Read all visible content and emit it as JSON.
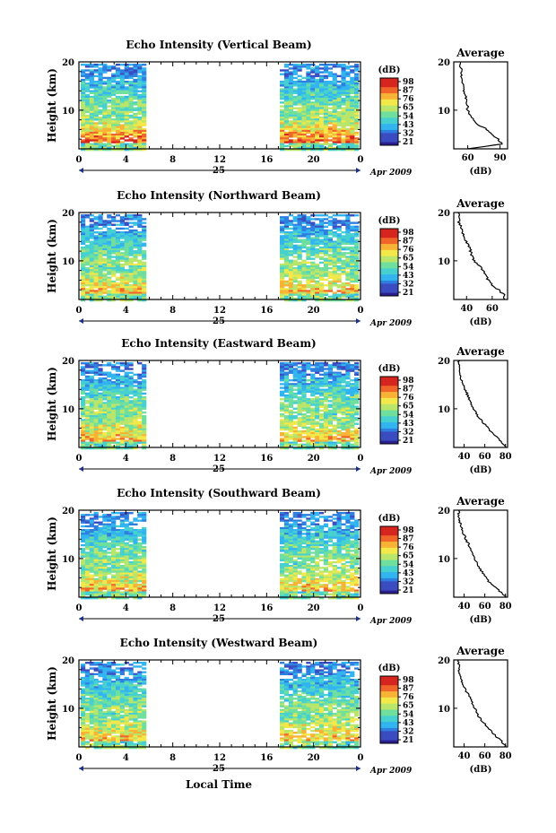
{
  "figure": {
    "xlabel": "Local Time",
    "ylabel": "Height (km)",
    "day_label": "25",
    "month_label": "Apr 2009",
    "avg_title": "Average",
    "avg_xlabel": "(dB)",
    "cb_unit": "(dB)",
    "cb_ticks": [
      "98",
      "87",
      "76",
      "65",
      "54",
      "43",
      "32",
      "21"
    ],
    "colormap": [
      "#2b1f8f",
      "#3b4cc0",
      "#2f7fe0",
      "#31b4f0",
      "#46d0d0",
      "#6fdf9e",
      "#b9e66a",
      "#f3e84a",
      "#f8b235",
      "#f0662a",
      "#d6251f"
    ]
  },
  "chart_data": [
    {
      "type": "heatmap",
      "title": "Echo Intensity (Vertical Beam)",
      "xlabel": "Local Time",
      "ylabel": "Height (km)",
      "xlim": [
        0,
        24
      ],
      "ylim": [
        2,
        20
      ],
      "x_ticks": [
        "0",
        "4",
        "8",
        "12",
        "16",
        "20",
        "0"
      ],
      "y_ticks": [
        "10",
        "20"
      ],
      "data_gap_hours": [
        5.8,
        17.2
      ],
      "colorbar": {
        "label": "(dB)",
        "ticks": [
          98,
          87,
          76,
          65,
          54,
          43,
          32,
          21
        ]
      },
      "average_profile": {
        "title": "Average",
        "xlabel": "(dB)",
        "xlim": [
          47,
          97
        ],
        "x_ticks": [
          "60",
          "90"
        ],
        "height_km": [
          2,
          3,
          4,
          5,
          6,
          7,
          8,
          10,
          12,
          14,
          16,
          18,
          20
        ],
        "db": [
          60,
          92,
          88,
          83,
          78,
          70,
          65,
          60,
          59,
          56,
          55,
          54,
          53
        ]
      }
    },
    {
      "type": "heatmap",
      "title": "Echo Intensity (Northward Beam)",
      "xlabel": "Local Time",
      "ylabel": "Height (km)",
      "xlim": [
        0,
        24
      ],
      "ylim": [
        2,
        20
      ],
      "x_ticks": [
        "0",
        "4",
        "8",
        "12",
        "16",
        "20",
        "0"
      ],
      "y_ticks": [
        "10",
        "20"
      ],
      "data_gap_hours": [
        5.8,
        17.2
      ],
      "colorbar": {
        "label": "(dB)",
        "ticks": [
          98,
          87,
          76,
          65,
          54,
          43,
          32,
          21
        ]
      },
      "average_profile": {
        "title": "Average",
        "xlabel": "(dB)",
        "xlim": [
          30,
          72
        ],
        "x_ticks": [
          "40",
          "60"
        ],
        "height_km": [
          2,
          3,
          4,
          5,
          6,
          8,
          10,
          12,
          14,
          16,
          18,
          20
        ],
        "db": [
          70,
          69,
          65,
          60,
          57,
          53,
          46,
          43,
          40,
          37,
          34,
          34
        ]
      }
    },
    {
      "type": "heatmap",
      "title": "Echo Intensity (Eastward Beam)",
      "xlabel": "Local Time",
      "ylabel": "Height (km)",
      "xlim": [
        0,
        24
      ],
      "ylim": [
        2,
        20
      ],
      "x_ticks": [
        "0",
        "4",
        "8",
        "12",
        "16",
        "20",
        "0"
      ],
      "y_ticks": [
        "10",
        "20"
      ],
      "data_gap_hours": [
        5.8,
        17.2
      ],
      "colorbar": {
        "label": "(dB)",
        "ticks": [
          98,
          87,
          76,
          65,
          54,
          43,
          32,
          21
        ]
      },
      "average_profile": {
        "title": "Average",
        "xlabel": "(dB)",
        "xlim": [
          30,
          82
        ],
        "x_ticks": [
          "40",
          "60",
          "80"
        ],
        "height_km": [
          2,
          3,
          4,
          5,
          6,
          8,
          10,
          12,
          14,
          16,
          18,
          20
        ],
        "db": [
          80,
          77,
          72,
          67,
          63,
          55,
          49,
          45,
          41,
          37,
          35,
          35
        ]
      }
    },
    {
      "type": "heatmap",
      "title": "Echo Intensity (Southward Beam)",
      "xlabel": "Local Time",
      "ylabel": "Height (km)",
      "xlim": [
        0,
        24
      ],
      "ylim": [
        2,
        20
      ],
      "x_ticks": [
        "0",
        "4",
        "8",
        "12",
        "16",
        "20",
        "0"
      ],
      "y_ticks": [
        "10",
        "20"
      ],
      "data_gap_hours": [
        5.8,
        17.2
      ],
      "colorbar": {
        "label": "(dB)",
        "ticks": [
          98,
          87,
          76,
          65,
          54,
          43,
          32,
          21
        ]
      },
      "average_profile": {
        "title": "Average",
        "xlabel": "(dB)",
        "xlim": [
          30,
          82
        ],
        "x_ticks": [
          "40",
          "60",
          "80"
        ],
        "height_km": [
          2,
          3,
          4,
          5,
          6,
          8,
          10,
          12,
          14,
          16,
          18,
          20
        ],
        "db": [
          80,
          76,
          70,
          65,
          61,
          55,
          50,
          46,
          42,
          38,
          35,
          35
        ]
      }
    },
    {
      "type": "heatmap",
      "title": "Echo Intensity (Westward Beam)",
      "xlabel": "Local Time",
      "ylabel": "Height (km)",
      "xlim": [
        0,
        24
      ],
      "ylim": [
        2,
        20
      ],
      "x_ticks": [
        "0",
        "4",
        "8",
        "12",
        "16",
        "20",
        "0"
      ],
      "y_ticks": [
        "10",
        "20"
      ],
      "data_gap_hours": [
        5.8,
        17.2
      ],
      "colorbar": {
        "label": "(dB)",
        "ticks": [
          98,
          87,
          76,
          65,
          54,
          43,
          32,
          21
        ]
      },
      "average_profile": {
        "title": "Average",
        "xlabel": "(dB)",
        "xlim": [
          30,
          82
        ],
        "x_ticks": [
          "40",
          "60",
          "80"
        ],
        "height_km": [
          2,
          3,
          4,
          5,
          6,
          8,
          10,
          12,
          14,
          16,
          18,
          20
        ],
        "db": [
          80,
          77,
          72,
          67,
          63,
          55,
          50,
          46,
          41,
          37,
          35,
          35
        ]
      }
    }
  ]
}
